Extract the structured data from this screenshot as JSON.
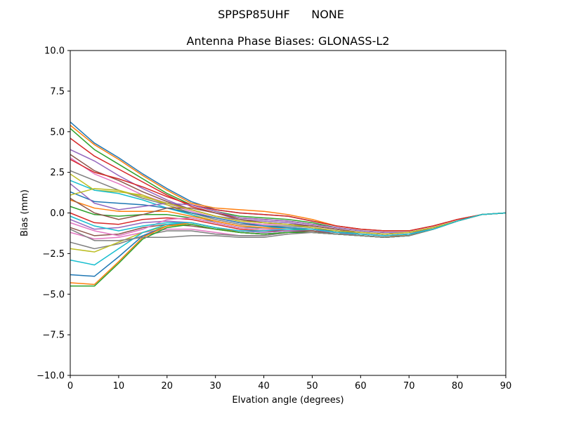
{
  "figure": {
    "suptitle": "SPPSP85UHF      NONE"
  },
  "chart_data": {
    "type": "line",
    "title": "Antenna Phase Biases: GLONASS-L2",
    "xlabel": "Elvation angle (degrees)",
    "ylabel": "Bias (mm)",
    "xlim": [
      0,
      90
    ],
    "ylim": [
      -10,
      10
    ],
    "xticks": [
      0,
      10,
      20,
      30,
      40,
      50,
      60,
      70,
      80,
      90
    ],
    "xtick_labels": [
      "0",
      "10",
      "20",
      "30",
      "40",
      "50",
      "60",
      "70",
      "80",
      "90"
    ],
    "yticks": [
      -10,
      -7.5,
      -5,
      -2.5,
      0,
      2.5,
      5,
      7.5,
      10
    ],
    "ytick_labels": [
      "−10.0",
      "−7.5",
      "−5.0",
      "−2.5",
      "0.0",
      "2.5",
      "5.0",
      "7.5",
      "10.0"
    ],
    "grid": false,
    "legend": "none",
    "x": [
      0,
      5,
      10,
      15,
      20,
      25,
      30,
      35,
      40,
      45,
      50,
      55,
      60,
      65,
      70,
      75,
      80,
      85,
      90
    ],
    "colors": [
      "#1f77b4",
      "#ff7f0e",
      "#2ca02c",
      "#d62728",
      "#9467bd",
      "#8c564b",
      "#e377c2",
      "#7f7f7f",
      "#bcbd22",
      "#17becf"
    ],
    "series": [
      {
        "values": [
          5.6,
          4.3,
          3.4,
          2.4,
          1.5,
          0.7,
          0.2,
          0.0,
          -0.1,
          -0.2,
          -0.5,
          -0.8,
          -1.0,
          -1.1,
          -1.1,
          -0.8,
          -0.4,
          -0.1,
          0.0
        ]
      },
      {
        "values": [
          5.4,
          4.2,
          3.3,
          2.3,
          1.4,
          0.6,
          0.3,
          0.2,
          0.1,
          -0.1,
          -0.4,
          -0.8,
          -1.0,
          -1.1,
          -1.1,
          -0.8,
          -0.4,
          -0.1,
          0.0
        ]
      },
      {
        "values": [
          5.2,
          3.9,
          3.0,
          2.1,
          1.2,
          0.5,
          0.1,
          -0.2,
          -0.3,
          -0.4,
          -0.6,
          -0.9,
          -1.1,
          -1.2,
          -1.2,
          -0.9,
          -0.5,
          -0.1,
          0.0
        ]
      },
      {
        "values": [
          4.6,
          3.5,
          2.7,
          1.9,
          1.1,
          0.4,
          0.0,
          -0.3,
          -0.4,
          -0.5,
          -0.7,
          -0.9,
          -1.1,
          -1.2,
          -1.2,
          -0.9,
          -0.5,
          -0.1,
          0.0
        ]
      },
      {
        "values": [
          3.9,
          3.2,
          2.3,
          1.5,
          0.8,
          0.2,
          -0.2,
          -0.4,
          -0.5,
          -0.6,
          -0.8,
          -1.0,
          -1.2,
          -1.3,
          -1.2,
          -0.9,
          -0.5,
          -0.1,
          0.0
        ]
      },
      {
        "values": [
          3.6,
          2.6,
          2.0,
          1.3,
          0.7,
          0.2,
          -0.2,
          -0.5,
          -0.6,
          -0.7,
          -0.8,
          -1.0,
          -1.2,
          -1.3,
          -1.2,
          -0.9,
          -0.5,
          -0.1,
          0.0
        ]
      },
      {
        "values": [
          3.4,
          2.4,
          1.8,
          1.1,
          0.6,
          0.1,
          -0.3,
          -0.6,
          -0.7,
          -0.7,
          -0.9,
          -1.1,
          -1.2,
          -1.3,
          -1.2,
          -0.9,
          -0.5,
          -0.1,
          0.0
        ]
      },
      {
        "values": [
          2.6,
          2.0,
          1.4,
          0.9,
          0.5,
          0.0,
          -0.4,
          -0.7,
          -0.8,
          -0.8,
          -0.9,
          -1.1,
          -1.3,
          -1.4,
          -1.3,
          -0.9,
          -0.5,
          -0.1,
          0.0
        ]
      },
      {
        "values": [
          2.4,
          1.4,
          1.3,
          1.1,
          0.5,
          -0.1,
          -0.5,
          -0.8,
          -0.9,
          -0.9,
          -1.0,
          -1.1,
          -1.3,
          -1.4,
          -1.3,
          -1.0,
          -0.5,
          -0.1,
          0.0
        ]
      },
      {
        "values": [
          2.0,
          1.4,
          1.2,
          0.8,
          0.3,
          -0.1,
          -0.6,
          -0.9,
          -0.9,
          -0.9,
          -1.0,
          -1.2,
          -1.3,
          -1.4,
          -1.3,
          -1.0,
          -0.5,
          -0.1,
          0.0
        ]
      },
      {
        "values": [
          1.3,
          0.7,
          0.6,
          0.5,
          0.3,
          0.0,
          -0.3,
          -0.6,
          -0.8,
          -0.9,
          -1.0,
          -1.1,
          -1.3,
          -1.4,
          -1.3,
          -1.0,
          -0.5,
          -0.1,
          0.0
        ]
      },
      {
        "values": [
          0.8,
          0.3,
          0.1,
          0.1,
          0.1,
          -0.2,
          -0.5,
          -0.8,
          -0.9,
          -1.0,
          -1.0,
          -1.2,
          -1.3,
          -1.4,
          -1.4,
          -1.0,
          -0.5,
          -0.1,
          0.0
        ]
      },
      {
        "values": [
          0.4,
          -0.1,
          -0.2,
          -0.1,
          -0.1,
          -0.3,
          -0.6,
          -0.9,
          -1.0,
          -1.0,
          -1.1,
          -1.2,
          -1.4,
          -1.5,
          -1.4,
          -1.0,
          -0.5,
          -0.1,
          0.0
        ]
      },
      {
        "values": [
          0.0,
          -0.6,
          -0.7,
          -0.4,
          -0.3,
          -0.4,
          -0.7,
          -1.0,
          -1.1,
          -1.1,
          -1.1,
          -1.2,
          -1.4,
          -1.5,
          -1.4,
          -1.0,
          -0.5,
          -0.1,
          0.0
        ]
      },
      {
        "values": [
          -0.4,
          -1.0,
          -0.9,
          -0.6,
          -0.5,
          -0.6,
          -0.9,
          -1.1,
          -1.2,
          -1.1,
          -1.1,
          -1.2,
          -1.4,
          -1.5,
          -1.4,
          -1.0,
          -0.5,
          -0.1,
          0.0
        ]
      },
      {
        "values": [
          -0.9,
          -1.4,
          -1.3,
          -0.9,
          -0.7,
          -0.8,
          -1.0,
          -1.2,
          -1.3,
          -1.2,
          -1.1,
          -1.3,
          -1.4,
          -1.5,
          -1.4,
          -1.0,
          -0.5,
          -0.1,
          0.0
        ]
      },
      {
        "values": [
          -1.2,
          -1.6,
          -1.5,
          -1.2,
          -1.0,
          -1.0,
          -1.2,
          -1.4,
          -1.4,
          -1.2,
          -1.2,
          -1.3,
          -1.4,
          -1.5,
          -1.4,
          -1.0,
          -0.5,
          -0.1,
          0.0
        ]
      },
      {
        "values": [
          -1.8,
          -2.2,
          -1.9,
          -1.4,
          -1.1,
          -1.1,
          -1.3,
          -1.4,
          -1.4,
          -1.2,
          -1.2,
          -1.3,
          -1.4,
          -1.5,
          -1.4,
          -1.0,
          -0.5,
          -0.1,
          0.0
        ]
      },
      {
        "values": [
          -2.2,
          -2.4,
          -1.8,
          -1.2,
          -0.8,
          -0.7,
          -1.0,
          -1.2,
          -1.3,
          -1.2,
          -1.2,
          -1.3,
          -1.4,
          -1.5,
          -1.4,
          -1.0,
          -0.5,
          -0.1,
          0.0
        ]
      },
      {
        "values": [
          -2.9,
          -3.2,
          -2.2,
          -1.2,
          -0.7,
          -0.6,
          -0.9,
          -1.2,
          -1.3,
          -1.2,
          -1.2,
          -1.3,
          -1.4,
          -1.5,
          -1.4,
          -1.0,
          -0.5,
          -0.1,
          0.0
        ]
      },
      {
        "values": [
          -3.8,
          -3.9,
          -2.7,
          -1.4,
          -0.8,
          -0.6,
          -0.9,
          -1.2,
          -1.3,
          -1.2,
          -1.2,
          -1.3,
          -1.4,
          -1.5,
          -1.4,
          -1.0,
          -0.5,
          -0.1,
          0.0
        ]
      },
      {
        "values": [
          -4.3,
          -4.4,
          -3.0,
          -1.5,
          -0.8,
          -0.6,
          -0.9,
          -1.2,
          -1.3,
          -1.2,
          -1.2,
          -1.3,
          -1.4,
          -1.5,
          -1.4,
          -1.0,
          -0.5,
          -0.1,
          0.0
        ]
      },
      {
        "values": [
          -4.5,
          -4.5,
          -3.1,
          -1.6,
          -0.9,
          -0.7,
          -1.0,
          -1.2,
          -1.3,
          -1.2,
          -1.2,
          -1.3,
          -1.4,
          -1.5,
          -1.4,
          -1.0,
          -0.5,
          -0.1,
          0.0
        ]
      },
      {
        "values": [
          3.3,
          2.5,
          2.1,
          1.6,
          1.0,
          0.5,
          0.2,
          0.0,
          -0.1,
          -0.2,
          -0.5,
          -0.8,
          -1.0,
          -1.1,
          -1.1,
          -0.8,
          -0.4,
          -0.1,
          0.0
        ]
      },
      {
        "values": [
          1.8,
          0.6,
          0.2,
          0.4,
          0.6,
          0.5,
          0.1,
          -0.3,
          -0.4,
          -0.5,
          -0.7,
          -0.9,
          -1.1,
          -1.2,
          -1.2,
          -0.9,
          -0.5,
          -0.1,
          0.0
        ]
      },
      {
        "values": [
          0.9,
          0.0,
          -0.4,
          -0.1,
          0.3,
          0.3,
          0.0,
          -0.4,
          -0.6,
          -0.7,
          -0.8,
          -1.0,
          -1.2,
          -1.3,
          -1.2,
          -0.9,
          -0.5,
          -0.1,
          0.0
        ]
      },
      {
        "values": [
          -0.6,
          -1.1,
          -1.4,
          -1.0,
          -0.4,
          -0.3,
          -0.6,
          -0.9,
          -1.0,
          -1.0,
          -1.0,
          -1.2,
          -1.3,
          -1.4,
          -1.3,
          -1.0,
          -0.5,
          -0.1,
          0.0
        ]
      },
      {
        "values": [
          -1.0,
          -1.7,
          -1.7,
          -1.5,
          -1.5,
          -1.4,
          -1.4,
          -1.5,
          -1.5,
          -1.3,
          -1.2,
          -1.3,
          -1.4,
          -1.5,
          -1.4,
          -1.0,
          -0.5,
          -0.1,
          0.0
        ]
      },
      {
        "values": [
          1.1,
          1.5,
          1.4,
          1.0,
          0.6,
          0.2,
          -0.2,
          -0.5,
          -0.6,
          -0.7,
          -0.9,
          -1.1,
          -1.2,
          -1.3,
          -1.2,
          -0.9,
          -0.5,
          -0.1,
          0.0
        ]
      },
      {
        "values": [
          -0.2,
          -0.8,
          -1.1,
          -0.8,
          -0.6,
          -0.6,
          -0.9,
          -1.1,
          -1.1,
          -1.0,
          -1.0,
          -1.2,
          -1.3,
          -1.4,
          -1.3,
          -1.0,
          -0.5,
          -0.1,
          0.0
        ]
      }
    ]
  }
}
